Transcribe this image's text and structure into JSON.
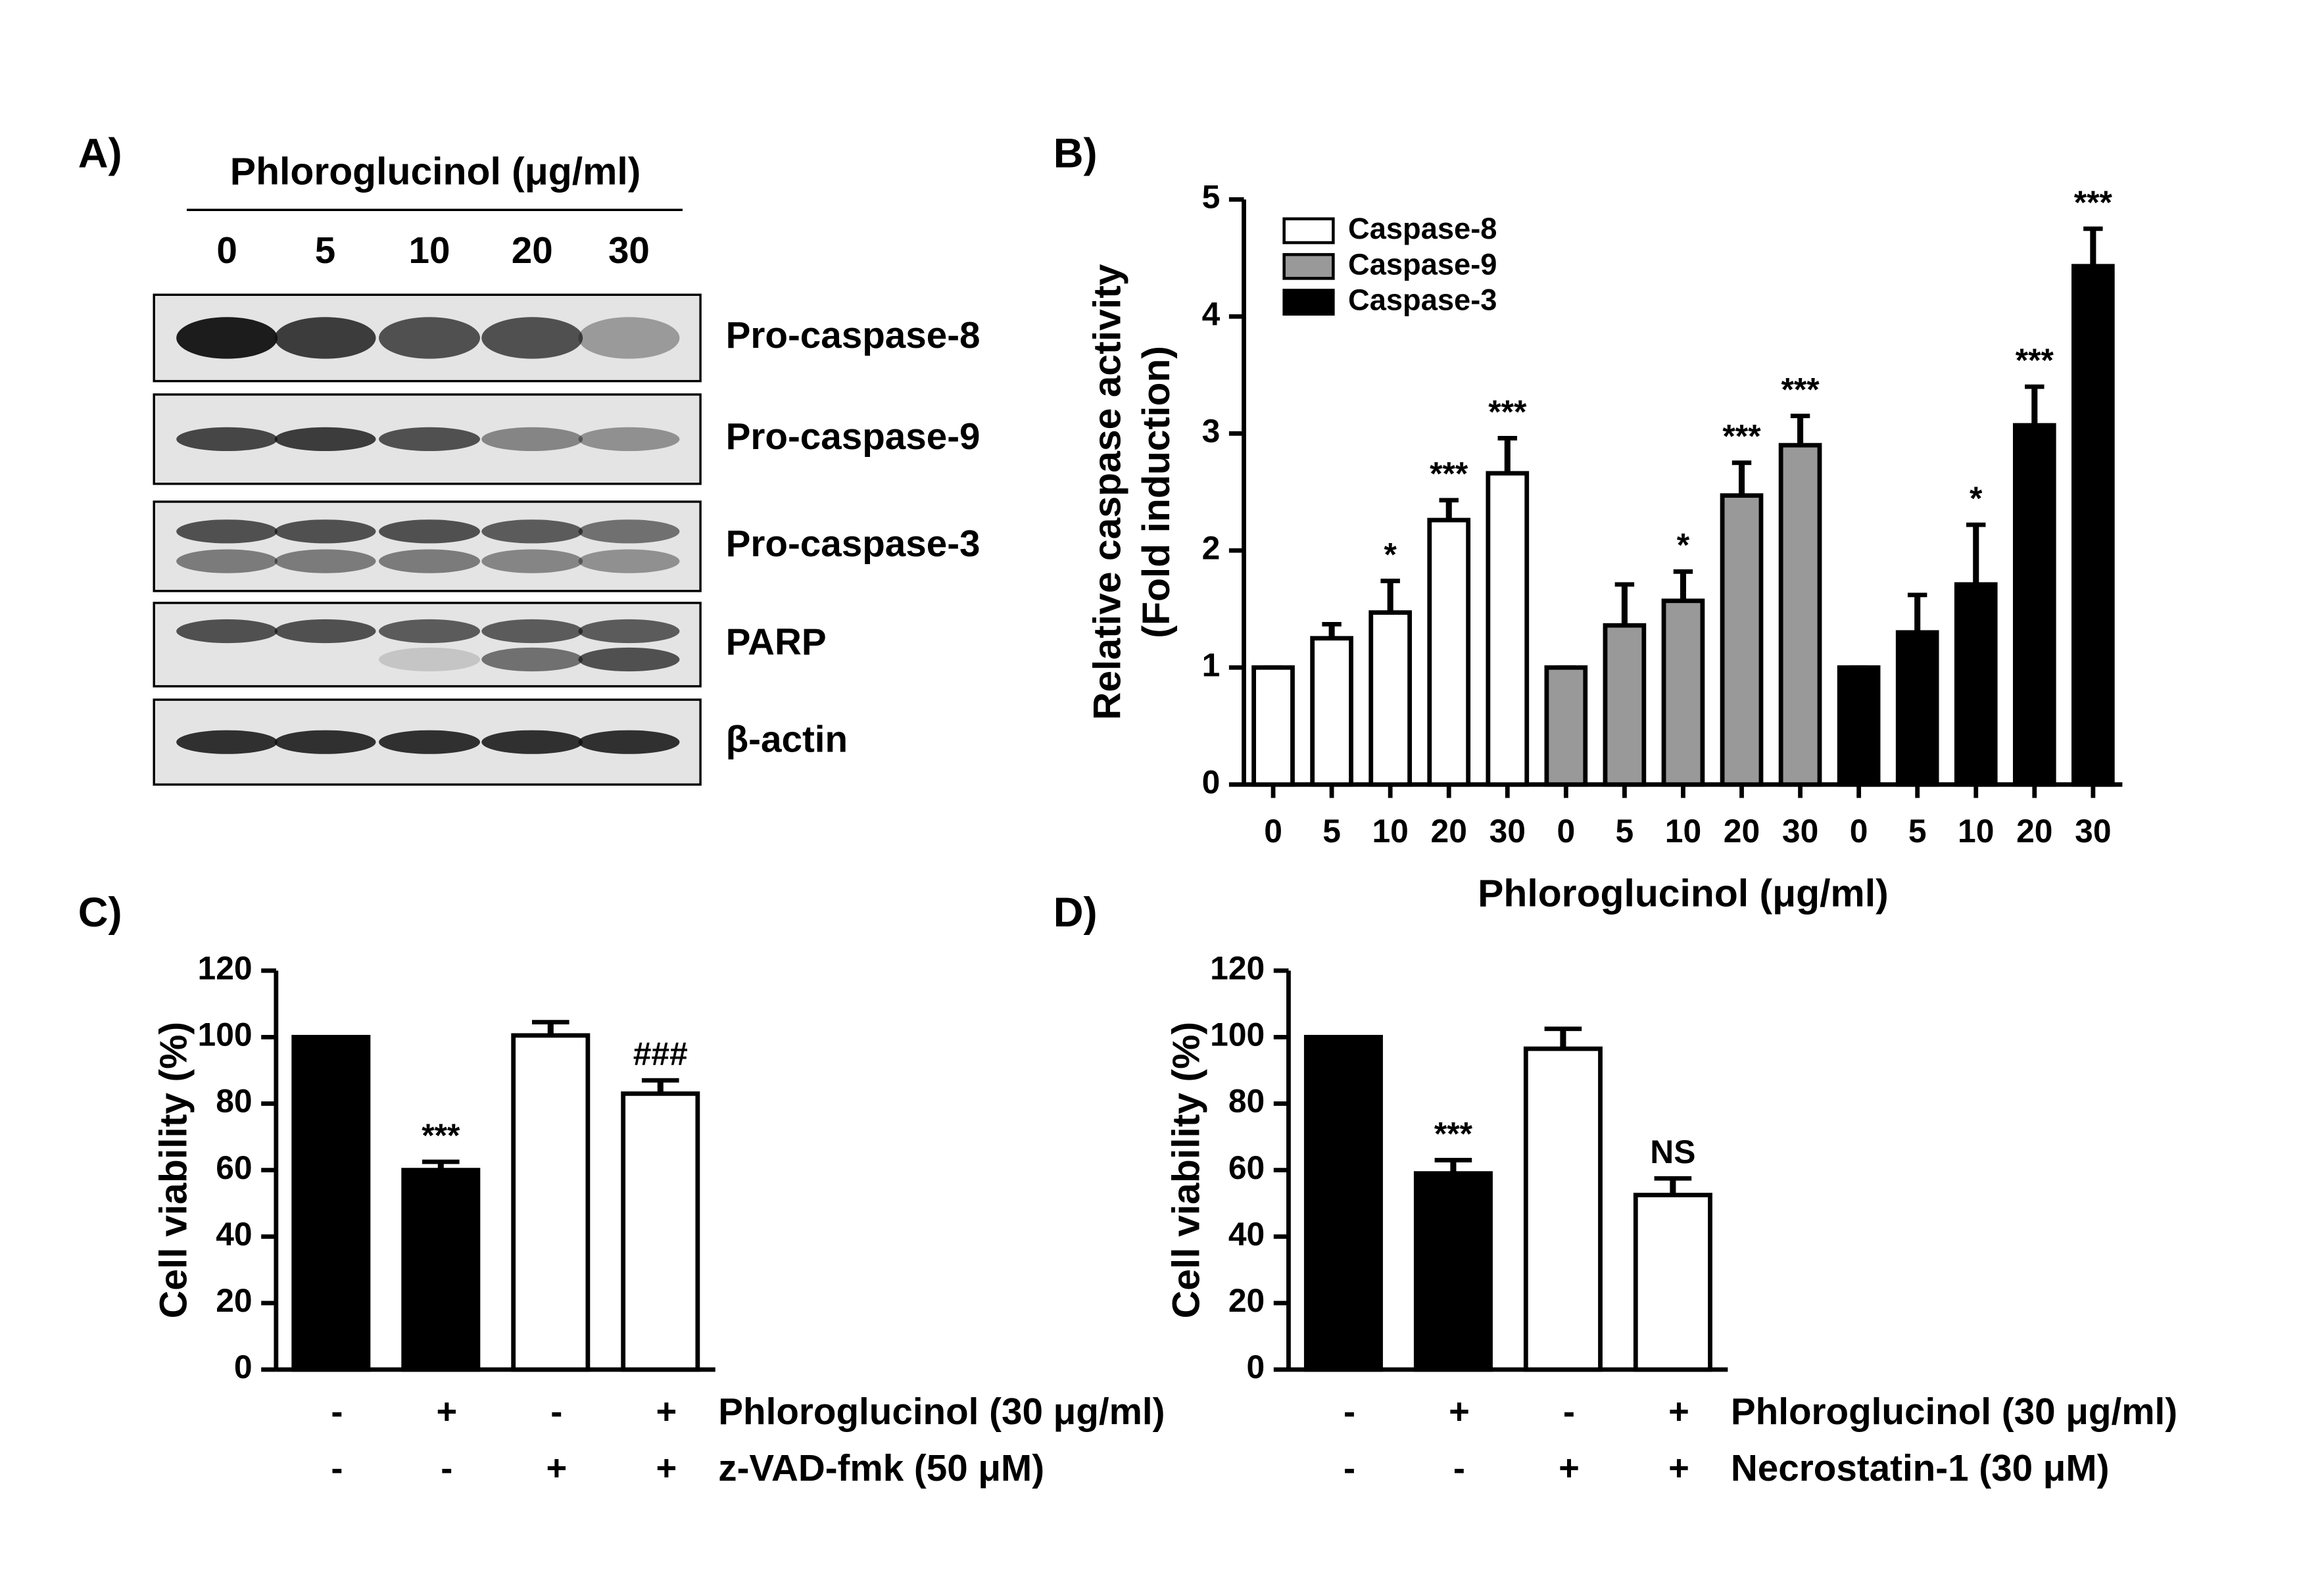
{
  "panel_labels": [
    "A)",
    "B)",
    "C)",
    "D)"
  ],
  "blot": {
    "title": "Phloroglucinol (μg/ml)",
    "lanes": [
      "0",
      "5",
      "10",
      "20",
      "30"
    ],
    "labels": [
      "Pro-caspase-8",
      "Pro-caspase-9",
      "Pro-caspase-3",
      "PARP",
      "β-actin"
    ]
  },
  "chart_data": [
    {
      "type": "bar",
      "xlabel": "Phloroglucinol (μg/ml)",
      "ylabel": [
        "Relative caspase activity",
        "(Fold induction)"
      ],
      "categories": [
        "0",
        "5",
        "10",
        "20",
        "30",
        "0",
        "5",
        "10",
        "20",
        "30",
        "0",
        "5",
        "10",
        "20",
        "30"
      ],
      "series": [
        {
          "name": "Caspase-8",
          "color": "#ffffff",
          "values": [
            1,
            1.25,
            1.47,
            2.26,
            2.66,
            null,
            null,
            null,
            null,
            null,
            null,
            null,
            null,
            null,
            null
          ],
          "errors": [
            0,
            0.12,
            0.27,
            0.17,
            0.3,
            null,
            null,
            null,
            null,
            null,
            null,
            null,
            null,
            null,
            null
          ]
        },
        {
          "name": "Caspase-9",
          "color": "#999999",
          "values": [
            null,
            null,
            null,
            null,
            null,
            1,
            1.36,
            1.57,
            2.47,
            2.9,
            null,
            null,
            null,
            null,
            null
          ],
          "errors": [
            null,
            null,
            null,
            null,
            null,
            0,
            0.35,
            0.25,
            0.28,
            0.25,
            null,
            null,
            null,
            null,
            null
          ]
        },
        {
          "name": "Caspase-3",
          "color": "#000000",
          "values": [
            null,
            null,
            null,
            null,
            null,
            null,
            null,
            null,
            null,
            null,
            1,
            1.3,
            1.71,
            3.07,
            4.43
          ],
          "errors": [
            null,
            null,
            null,
            null,
            null,
            null,
            null,
            null,
            null,
            null,
            0,
            0.32,
            0.51,
            0.33,
            0.32
          ]
        }
      ],
      "annotations": [
        null,
        null,
        "*",
        "***",
        "***",
        null,
        null,
        "*",
        "***",
        "***",
        null,
        null,
        "*",
        "***",
        "***"
      ],
      "ylim": [
        0,
        5
      ],
      "yticks": [
        0,
        1,
        2,
        3,
        4,
        5
      ],
      "legend": "upper left"
    },
    {
      "type": "bar",
      "ylabel": [
        "Cell viability (%)"
      ],
      "rows": [
        {
          "label": "Phloroglucinol (30 μg/ml)",
          "values": [
            "-",
            "+",
            "-",
            "+"
          ]
        },
        {
          "label": "z-VAD-fmk (50 μM)",
          "values": [
            "-",
            "-",
            "+",
            "+"
          ]
        }
      ],
      "values": [
        100,
        60,
        100.5,
        83
      ],
      "errors": [
        0,
        2.5,
        4,
        4
      ],
      "colors": [
        "#000000",
        "#000000",
        "#ffffff",
        "#ffffff"
      ],
      "annotations": [
        null,
        "***",
        null,
        "###"
      ],
      "ylim": [
        0,
        120
      ],
      "yticks": [
        0,
        20,
        40,
        60,
        80,
        100,
        120
      ]
    },
    {
      "type": "bar",
      "ylabel": [
        "Cell viability (%)"
      ],
      "rows": [
        {
          "label": "Phloroglucinol (30 μg/ml)",
          "values": [
            "-",
            "+",
            "-",
            "+"
          ]
        },
        {
          "label": "Necrostatin-1 (30 μM)",
          "values": [
            "-",
            "-",
            "+",
            "+"
          ]
        }
      ],
      "values": [
        100,
        59,
        96.5,
        52.5
      ],
      "errors": [
        0,
        4,
        6,
        5
      ],
      "colors": [
        "#000000",
        "#000000",
        "#ffffff",
        "#ffffff"
      ],
      "annotations": [
        null,
        "***",
        null,
        "NS"
      ],
      "ylim": [
        0,
        120
      ],
      "yticks": [
        0,
        20,
        40,
        60,
        80,
        100,
        120
      ]
    }
  ]
}
